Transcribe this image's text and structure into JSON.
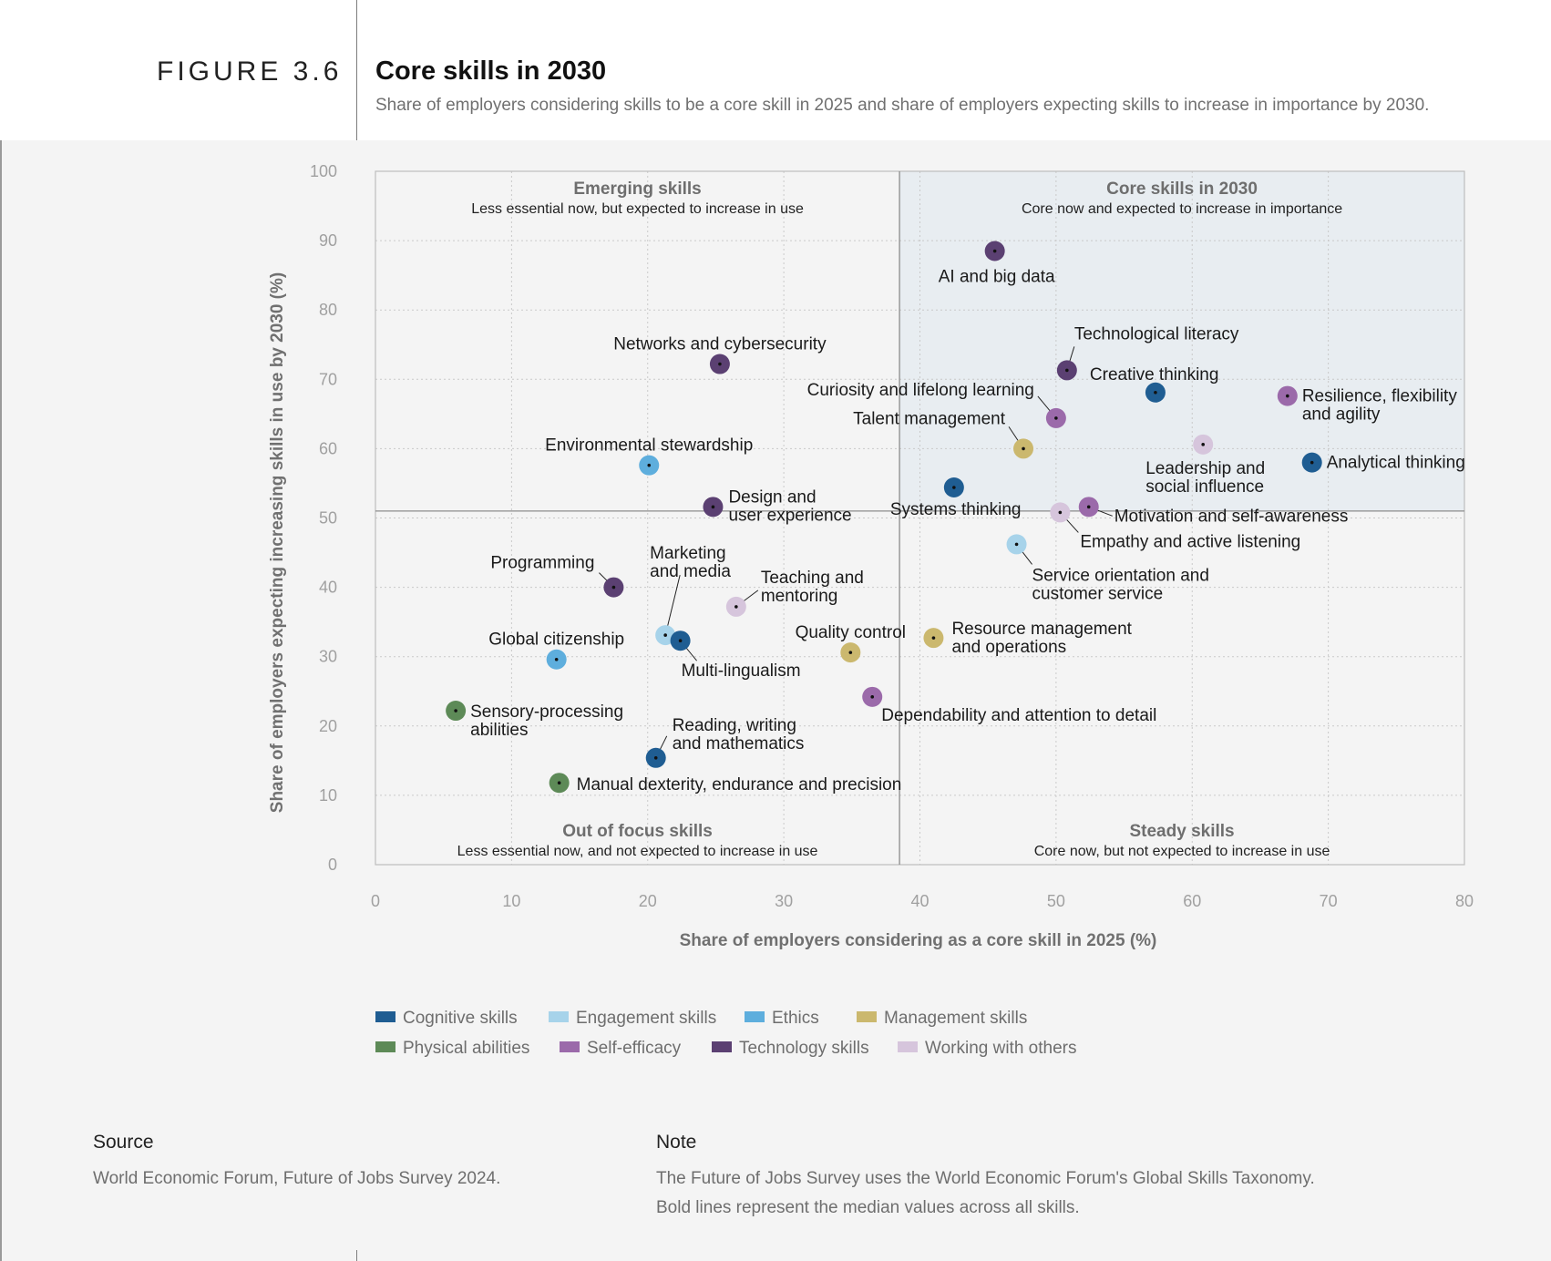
{
  "figure": {
    "label": "FIGURE 3.6",
    "title": "Core skills in 2030",
    "subtitle": "Share of employers considering skills to be a core skill in 2025 and share of employers expecting skills to increase in importance by 2030."
  },
  "chart_data": {
    "type": "scatter",
    "xlabel": "Share of employers considering as a core skill in 2025 (%)",
    "ylabel": "Share of employers expecting increasing skills in use by 2030 (%)",
    "xlim": [
      0,
      80
    ],
    "ylim": [
      0,
      100
    ],
    "x_ticks": [
      0,
      10,
      20,
      30,
      40,
      50,
      60,
      70,
      80
    ],
    "y_ticks": [
      0,
      10,
      20,
      30,
      40,
      50,
      60,
      70,
      80,
      90,
      100
    ],
    "grid": true,
    "median_x": 38.5,
    "median_y": 51,
    "quadrants": [
      {
        "id": "emerging",
        "title": "Emerging skills",
        "subtitle": "Less essential now, but expected to increase in use"
      },
      {
        "id": "core",
        "title": "Core skills in 2030",
        "subtitle": "Core now and expected to increase in importance"
      },
      {
        "id": "out",
        "title": "Out of focus skills",
        "subtitle": "Less essential now, and not expected to increase in use"
      },
      {
        "id": "steady",
        "title": "Steady skills",
        "subtitle": "Core now, but not expected to increase in use"
      }
    ],
    "categories": [
      {
        "name": "Cognitive skills",
        "color": "#1f5d92"
      },
      {
        "name": "Engagement skills",
        "color": "#a7d3ea"
      },
      {
        "name": "Ethics",
        "color": "#5eaedd"
      },
      {
        "name": "Management skills",
        "color": "#cbb86e"
      },
      {
        "name": "Physical abilities",
        "color": "#5d8a57"
      },
      {
        "name": "Self-efficacy",
        "color": "#9b6aaa"
      },
      {
        "name": "Technology skills",
        "color": "#5b4072"
      },
      {
        "name": "Working with others",
        "color": "#d6c5dc"
      }
    ],
    "points": [
      {
        "skill": "AI and big data",
        "category": "Technology skills",
        "x": 45.5,
        "y": 88.5
      },
      {
        "skill": "Technological literacy",
        "category": "Technology skills",
        "x": 50.8,
        "y": 71.3
      },
      {
        "skill": "Creative thinking",
        "category": "Cognitive skills",
        "x": 57.3,
        "y": 68.1
      },
      {
        "skill": "Resilience, flexibility and agility",
        "category": "Self-efficacy",
        "x": 67,
        "y": 67.6
      },
      {
        "skill": "Curiosity and lifelong learning",
        "category": "Self-efficacy",
        "x": 50,
        "y": 64.4
      },
      {
        "skill": "Talent management",
        "category": "Management skills",
        "x": 47.6,
        "y": 60
      },
      {
        "skill": "Leadership and social influence",
        "category": "Working with others",
        "x": 60.8,
        "y": 60.6
      },
      {
        "skill": "Analytical thinking",
        "category": "Cognitive skills",
        "x": 68.8,
        "y": 58
      },
      {
        "skill": "Systems thinking",
        "category": "Cognitive skills",
        "x": 42.5,
        "y": 54.4
      },
      {
        "skill": "Motivation and self-awareness",
        "category": "Self-efficacy",
        "x": 52.4,
        "y": 51.6
      },
      {
        "skill": "Empathy and active listening",
        "category": "Working with others",
        "x": 50.3,
        "y": 50.8
      },
      {
        "skill": "Service orientation and customer service",
        "category": "Engagement skills",
        "x": 47.1,
        "y": 46.2
      },
      {
        "skill": "Networks and cybersecurity",
        "category": "Technology skills",
        "x": 25.3,
        "y": 72.2
      },
      {
        "skill": "Environmental stewardship",
        "category": "Ethics",
        "x": 20.1,
        "y": 57.6
      },
      {
        "skill": "Design and user experience",
        "category": "Technology skills",
        "x": 24.8,
        "y": 51.6
      },
      {
        "skill": "Programming",
        "category": "Technology skills",
        "x": 17.5,
        "y": 40
      },
      {
        "skill": "Teaching and mentoring",
        "category": "Working with others",
        "x": 26.5,
        "y": 37.2
      },
      {
        "skill": "Marketing and media",
        "category": "Engagement skills",
        "x": 21.3,
        "y": 33.1
      },
      {
        "skill": "Multi-lingualism",
        "category": "Cognitive skills",
        "x": 22.4,
        "y": 32.3
      },
      {
        "skill": "Global citizenship",
        "category": "Ethics",
        "x": 13.3,
        "y": 29.6
      },
      {
        "skill": "Quality control",
        "category": "Management skills",
        "x": 34.9,
        "y": 30.6
      },
      {
        "skill": "Resource management and operations",
        "category": "Management skills",
        "x": 41,
        "y": 32.7
      },
      {
        "skill": "Dependability and attention to detail",
        "category": "Self-efficacy",
        "x": 36.5,
        "y": 24.2
      },
      {
        "skill": "Sensory-processing abilities",
        "category": "Physical abilities",
        "x": 5.9,
        "y": 22.2
      },
      {
        "skill": "Reading, writing and mathematics",
        "category": "Cognitive skills",
        "x": 20.6,
        "y": 15.4
      },
      {
        "skill": "Manual dexterity, endurance and precision",
        "category": "Physical abilities",
        "x": 13.5,
        "y": 11.8
      }
    ]
  },
  "footer": {
    "source_heading": "Source",
    "source_text": "World Economic Forum, Future of Jobs Survey 2024.",
    "note_heading": "Note",
    "note_text": "The Future of Jobs Survey uses the World Economic Forum's Global Skills Taxonomy.",
    "note_text_2": "Bold lines represent the median values across all skills."
  }
}
